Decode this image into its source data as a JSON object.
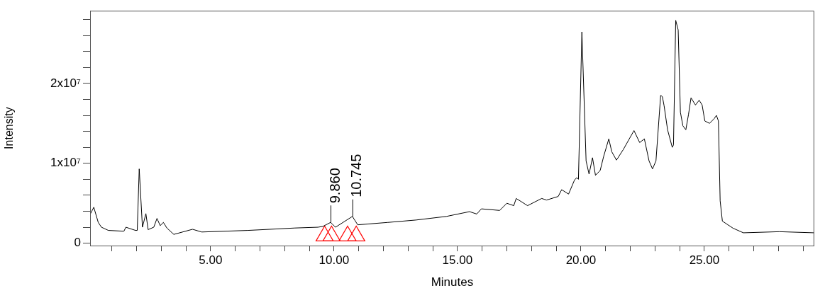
{
  "chart_data": {
    "type": "line",
    "xlabel": "Minutes",
    "ylabel": "Intensity",
    "xlim": [
      0.12,
      29.45
    ],
    "ylim": [
      -300000,
      29100000
    ],
    "xticks": [
      {
        "value": 1,
        "label": null
      },
      {
        "value": 2,
        "label": null
      },
      {
        "value": 3,
        "label": null
      },
      {
        "value": 4,
        "label": null
      },
      {
        "value": 5,
        "label": "5.00"
      },
      {
        "value": 6,
        "label": null
      },
      {
        "value": 7,
        "label": null
      },
      {
        "value": 8,
        "label": null
      },
      {
        "value": 9,
        "label": null
      },
      {
        "value": 10,
        "label": "10.00"
      },
      {
        "value": 11,
        "label": null
      },
      {
        "value": 12,
        "label": null
      },
      {
        "value": 13,
        "label": null
      },
      {
        "value": 14,
        "label": null
      },
      {
        "value": 15,
        "label": "15.00"
      },
      {
        "value": 16,
        "label": null
      },
      {
        "value": 17,
        "label": null
      },
      {
        "value": 18,
        "label": null
      },
      {
        "value": 19,
        "label": null
      },
      {
        "value": 20,
        "label": "20.00"
      },
      {
        "value": 21,
        "label": null
      },
      {
        "value": 22,
        "label": null
      },
      {
        "value": 23,
        "label": null
      },
      {
        "value": 24,
        "label": null
      },
      {
        "value": 25,
        "label": "25.00"
      },
      {
        "value": 26,
        "label": null
      },
      {
        "value": 27,
        "label": null
      },
      {
        "value": 28,
        "label": null
      },
      {
        "value": 29,
        "label": null
      }
    ],
    "yticks": [
      0,
      {
        "value": 2000000,
        "label": null
      },
      {
        "value": 4000000,
        "label": null
      },
      {
        "value": 6000000,
        "label": null
      },
      {
        "value": 8000000,
        "label": null
      },
      {
        "value": 10000000,
        "label": "1x10⁷"
      },
      {
        "value": 12000000,
        "label": null
      },
      {
        "value": 14000000,
        "label": null
      },
      {
        "value": 16000000,
        "label": null
      },
      {
        "value": 18000000,
        "label": null
      },
      {
        "value": 20000000,
        "label": "2x10⁷"
      },
      {
        "value": 22000000,
        "label": null
      },
      {
        "value": 24000000,
        "label": null
      },
      {
        "value": 26000000,
        "label": null
      },
      {
        "value": 28000000,
        "label": null
      }
    ],
    "grid": false,
    "annotations": [
      {
        "text": "9.860",
        "x": 9.86,
        "y": 2600000
      },
      {
        "text": "10.745",
        "x": 10.745,
        "y": 3350000
      }
    ],
    "series": [
      {
        "type": "line",
        "color": "#000000",
        "marker": "none",
        "x": [
          0.12,
          0.27,
          0.45,
          0.58,
          0.86,
          1.49,
          1.57,
          1.96,
          2.03,
          2.11,
          2.24,
          2.38,
          2.47,
          2.7,
          2.83,
          2.96,
          3.09,
          3.23,
          3.51,
          4.27,
          4.64,
          6.52,
          8.42,
          9.35,
          9.55,
          9.86,
          10.06,
          10.745,
          10.96,
          12.18,
          13.32,
          14.55,
          15.49,
          15.78,
          15.97,
          16.71,
          17.0,
          17.28,
          17.38,
          17.84,
          18.41,
          18.61,
          19.08,
          19.22,
          19.5,
          19.74,
          19.83,
          19.9,
          20.04,
          20.21,
          20.33,
          20.47,
          20.59,
          20.78,
          20.92,
          21.13,
          21.25,
          21.44,
          21.72,
          21.96,
          22.15,
          22.38,
          22.57,
          22.76,
          22.9,
          23.04,
          23.23,
          23.3,
          23.37,
          23.51,
          23.7,
          23.75,
          23.84,
          23.94,
          24.03,
          24.13,
          24.25,
          24.36,
          24.46,
          24.64,
          24.79,
          24.91,
          25.02,
          25.21,
          25.4,
          25.49,
          25.57,
          25.64,
          25.73,
          26.16,
          26.58,
          28.04,
          29.45
        ],
        "values": [
          3600000,
          4500000,
          2600000,
          2000000,
          1600000,
          1500000,
          2000000,
          1600000,
          1600000,
          9300000,
          2000000,
          3700000,
          1700000,
          2000000,
          3100000,
          2200000,
          2600000,
          1900000,
          1100000,
          1740000,
          1400000,
          1600000,
          1900000,
          2000000,
          2100000,
          2600000,
          2000000,
          3350000,
          2300000,
          2600000,
          2900000,
          3350000,
          3950000,
          3650000,
          4300000,
          4100000,
          5000000,
          4700000,
          5600000,
          4700000,
          5600000,
          5400000,
          5850000,
          6700000,
          6150000,
          7900000,
          8200000,
          8000000,
          26450000,
          10300000,
          8650000,
          10700000,
          8500000,
          9100000,
          10850000,
          13060000,
          11450000,
          10400000,
          11740000,
          13060000,
          14100000,
          12600000,
          13060000,
          10300000,
          9300000,
          10300000,
          18500000,
          18350000,
          17200000,
          14200000,
          12000000,
          12300000,
          27900000,
          26700000,
          16400000,
          14700000,
          14200000,
          16150000,
          18200000,
          17300000,
          17900000,
          17300000,
          15300000,
          15000000,
          15600000,
          16000000,
          15300000,
          5300000,
          2760000,
          1880000,
          1300000,
          1440000,
          1300000
        ]
      },
      {
        "type": "scatter",
        "color": "#ff0000",
        "marker": "triangle",
        "x": [
          9.62,
          9.9,
          10.55,
          10.9
        ],
        "values": [
          900000,
          900000,
          900000,
          900000
        ]
      }
    ]
  }
}
